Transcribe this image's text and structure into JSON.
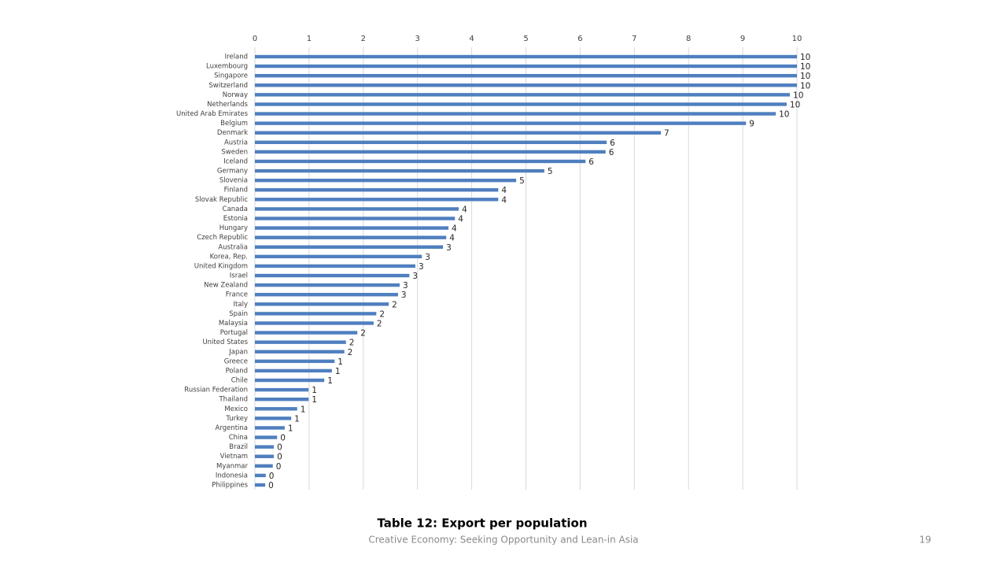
{
  "chart_data": {
    "type": "bar",
    "orientation": "horizontal",
    "title": "Table 12: Export per population",
    "categories": [
      "Ireland",
      "Luxembourg",
      "Singapore",
      "Switzerland",
      "Norway",
      "Netherlands",
      "United Arab Emirates",
      "Belgium",
      "Denmark",
      "Austria",
      "Sweden",
      "Iceland",
      "Germany",
      "Slovenia",
      "Finland",
      "Slovak Republic",
      "Canada",
      "Estonia",
      "Hungary",
      "Czech Republic",
      "Australia",
      "Korea, Rep.",
      "United Kingdom",
      "Israel",
      "New Zealand",
      "France",
      "Italy",
      "Spain",
      "Malaysia",
      "Portugal",
      "United States",
      "Japan",
      "Greece",
      "Poland",
      "Chile",
      "Russian Federation",
      "Thailand",
      "Mexico",
      "Turkey",
      "Argentina",
      "China",
      "Brazil",
      "Vietnam",
      "Myanmar",
      "Indonesia",
      "Philippines"
    ],
    "values": [
      10.0,
      10.0,
      10.0,
      10.0,
      9.87,
      9.81,
      9.61,
      9.06,
      7.49,
      6.49,
      6.47,
      6.1,
      5.34,
      4.82,
      4.49,
      4.49,
      3.76,
      3.69,
      3.57,
      3.53,
      3.47,
      3.08,
      2.96,
      2.85,
      2.67,
      2.64,
      2.47,
      2.24,
      2.19,
      1.89,
      1.68,
      1.65,
      1.47,
      1.42,
      1.28,
      0.99,
      0.99,
      0.78,
      0.67,
      0.55,
      0.41,
      0.35,
      0.35,
      0.33,
      0.2,
      0.19
    ],
    "value_labels": [
      "10",
      "10",
      "10",
      "10",
      "10",
      "10",
      "10",
      "9",
      "7",
      "6",
      "6",
      "6",
      "5",
      "5",
      "4",
      "4",
      "4",
      "4",
      "4",
      "4",
      "3",
      "3",
      "3",
      "3",
      "3",
      "3",
      "2",
      "2",
      "2",
      "2",
      "2",
      "2",
      "1",
      "1",
      "1",
      "1",
      "1",
      "1",
      "1",
      "1",
      "0",
      "0",
      "0",
      "0",
      "0",
      "0"
    ],
    "color": "#4f7fbf",
    "xlim": [
      0,
      10
    ],
    "xticks": [
      0,
      1,
      2,
      3,
      4,
      5,
      6,
      7,
      8,
      9,
      10
    ],
    "grid": true
  },
  "footer": {
    "text": "Creative Economy: Seeking Opportunity and Lean-in Asia",
    "page": 19
  }
}
